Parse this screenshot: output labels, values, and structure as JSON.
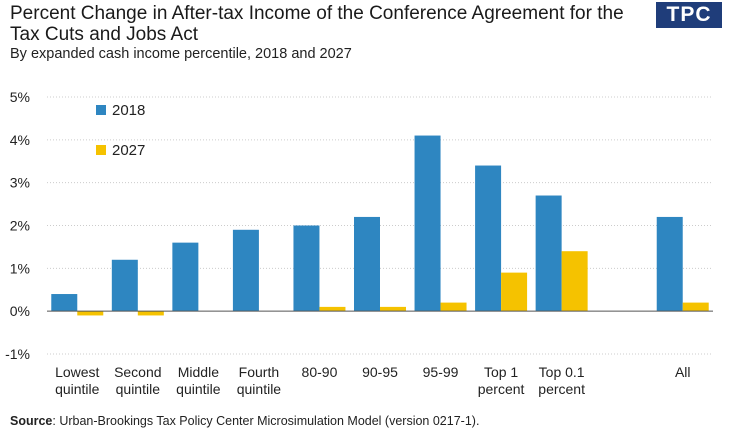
{
  "header": {
    "title": "Percent Change in After-tax Income of the Conference Agreement for the Tax Cuts and Jobs Act",
    "subtitle": "By expanded cash income percentile, 2018 and 2027",
    "logo_text": "TPC"
  },
  "footer": {
    "source_label": "Source",
    "source_text": ": Urban-Brookings Tax Policy Center Microsimulation Model (version 0217-1)."
  },
  "colors": {
    "series_2018": "#2e86c1",
    "series_2027": "#f5c200",
    "grid": "#cccccc",
    "axis": "#555555",
    "logo_bg": "#1f3d7a"
  },
  "chart_data": {
    "type": "bar",
    "categories": [
      [
        "Lowest",
        "quintile"
      ],
      [
        "Second",
        "quintile"
      ],
      [
        "Middle",
        "quintile"
      ],
      [
        "Fourth",
        "quintile"
      ],
      [
        "80-90"
      ],
      [
        "90-95"
      ],
      [
        "95-99"
      ],
      [
        "Top 1",
        "percent"
      ],
      [
        "Top 0.1",
        "percent"
      ],
      [
        ""
      ],
      [
        "All"
      ]
    ],
    "series": [
      {
        "name": "2018",
        "values": [
          0.4,
          1.2,
          1.6,
          1.9,
          2.0,
          2.2,
          4.1,
          3.4,
          2.7,
          null,
          2.2
        ]
      },
      {
        "name": "2027",
        "values": [
          -0.1,
          -0.1,
          0.0,
          0.0,
          0.1,
          0.1,
          0.2,
          0.9,
          1.4,
          null,
          0.2
        ]
      }
    ],
    "yticks": [
      "5%",
      "4%",
      "3%",
      "2%",
      "1%",
      "0%",
      "-1%"
    ],
    "ylim": [
      -1,
      5
    ],
    "grid": true,
    "legend_position": "top-left"
  }
}
